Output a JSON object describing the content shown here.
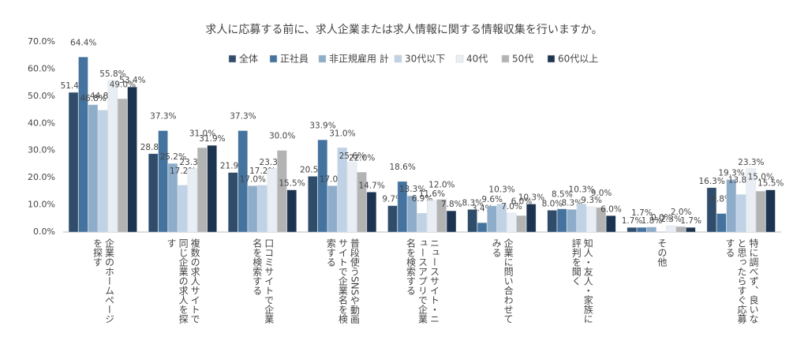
{
  "chart_data": {
    "type": "bar",
    "title": "求人に応募する前に、求人企業または求人情報に関する情報収集を行いますか。",
    "categories": [
      "企業のホームページを探す",
      "複数の求人サイトで同じ企業の求人を探す",
      "口コミサイトで企業名を検索する",
      "普段使うSNSや動画サイトで企業名を検索する",
      "ニュースサイト・ニュースアプリで企業名を検索する",
      "企業に問い合わせてみる",
      "知人・友人・家族に評判を聞く",
      "その他",
      "特に調べず、良いなと思ったらすぐ応募する"
    ],
    "series": [
      {
        "name": "全体",
        "color": "#2f4d6b",
        "values": [
          51.4,
          28.8,
          21.9,
          20.5,
          9.7,
          8.3,
          8.0,
          1.7,
          16.3
        ],
        "value_labels": [
          "51.4%",
          "28.8%",
          "21.9%",
          "20.5%",
          "9.7%",
          "8.3%",
          "8.0%",
          "1.7%",
          "16.3%"
        ]
      },
      {
        "name": "正社員",
        "color": "#43739e",
        "values": [
          64.4,
          37.3,
          37.3,
          33.9,
          18.6,
          3.4,
          8.5,
          1.7,
          6.8
        ],
        "value_labels": [
          "64.4%",
          "37.3%",
          "37.3%",
          "33.9%",
          "18.6%",
          "3.4%",
          "8.5%",
          "1.7%",
          "6.8%"
        ]
      },
      {
        "name": "非正規雇用 計",
        "color": "#8eadcb",
        "values": [
          46.8,
          25.2,
          17.0,
          17.0,
          13.3,
          9.6,
          8.3,
          1.8,
          19.3
        ],
        "value_labels": [
          "46.8%",
          "25.2%",
          "17.0%",
          "17.0%",
          "13.3%",
          "9.6%",
          "8.3%",
          "1.8%",
          "19.3%"
        ]
      },
      {
        "name": "30代以下",
        "color": "#c0d3e6",
        "values": [
          44.8,
          17.2,
          17.2,
          31.0,
          6.9,
          10.3,
          10.3,
          0.0,
          13.8
        ],
        "value_labels": [
          "44.8%",
          "17.2%",
          "17.2%",
          "31.0%",
          "6.9%",
          "10.3%",
          "10.3%",
          "0.0%",
          "13.8%"
        ]
      },
      {
        "name": "40代",
        "color": "#e9eef4",
        "values": [
          55.8,
          23.3,
          23.3,
          25.6,
          11.6,
          7.0,
          9.3,
          2.3,
          23.3
        ],
        "value_labels": [
          "55.8%",
          "23.3%",
          "23.3%",
          "25.6%",
          "11.6%",
          "7.0%",
          "9.3%",
          "2.3%",
          "23.3%"
        ]
      },
      {
        "name": "50代",
        "color": "#b3b3b3",
        "values": [
          49.0,
          31.0,
          30.0,
          22.0,
          12.0,
          6.0,
          9.0,
          2.0,
          15.0
        ],
        "value_labels": [
          "49.0%",
          "31.0%",
          "30.0%",
          "22.0%",
          "12.0%",
          "6.0%",
          "9.0%",
          "2.0%",
          "15.0%"
        ]
      },
      {
        "name": "60代以上",
        "color": "#1d3450",
        "values": [
          53.4,
          31.9,
          15.5,
          14.7,
          7.8,
          10.3,
          6.0,
          1.7,
          15.5
        ],
        "value_labels": [
          "53.4%",
          "31.9%",
          "15.5%",
          "14.7%",
          "7.8%",
          "10.3%",
          "6.0%",
          "1.7%",
          "15.5%"
        ]
      }
    ],
    "ylim": [
      0,
      70
    ],
    "yticks": [
      {
        "value": 0,
        "label": "0.0%"
      },
      {
        "value": 10,
        "label": "10.0%"
      },
      {
        "value": 20,
        "label": "20.0%"
      },
      {
        "value": 30,
        "label": "30.0%"
      },
      {
        "value": 40,
        "label": "40.0%"
      },
      {
        "value": 50,
        "label": "50.0%"
      },
      {
        "value": 60,
        "label": "60.0%"
      },
      {
        "value": 70,
        "label": "70.0%"
      }
    ],
    "grid": false
  }
}
